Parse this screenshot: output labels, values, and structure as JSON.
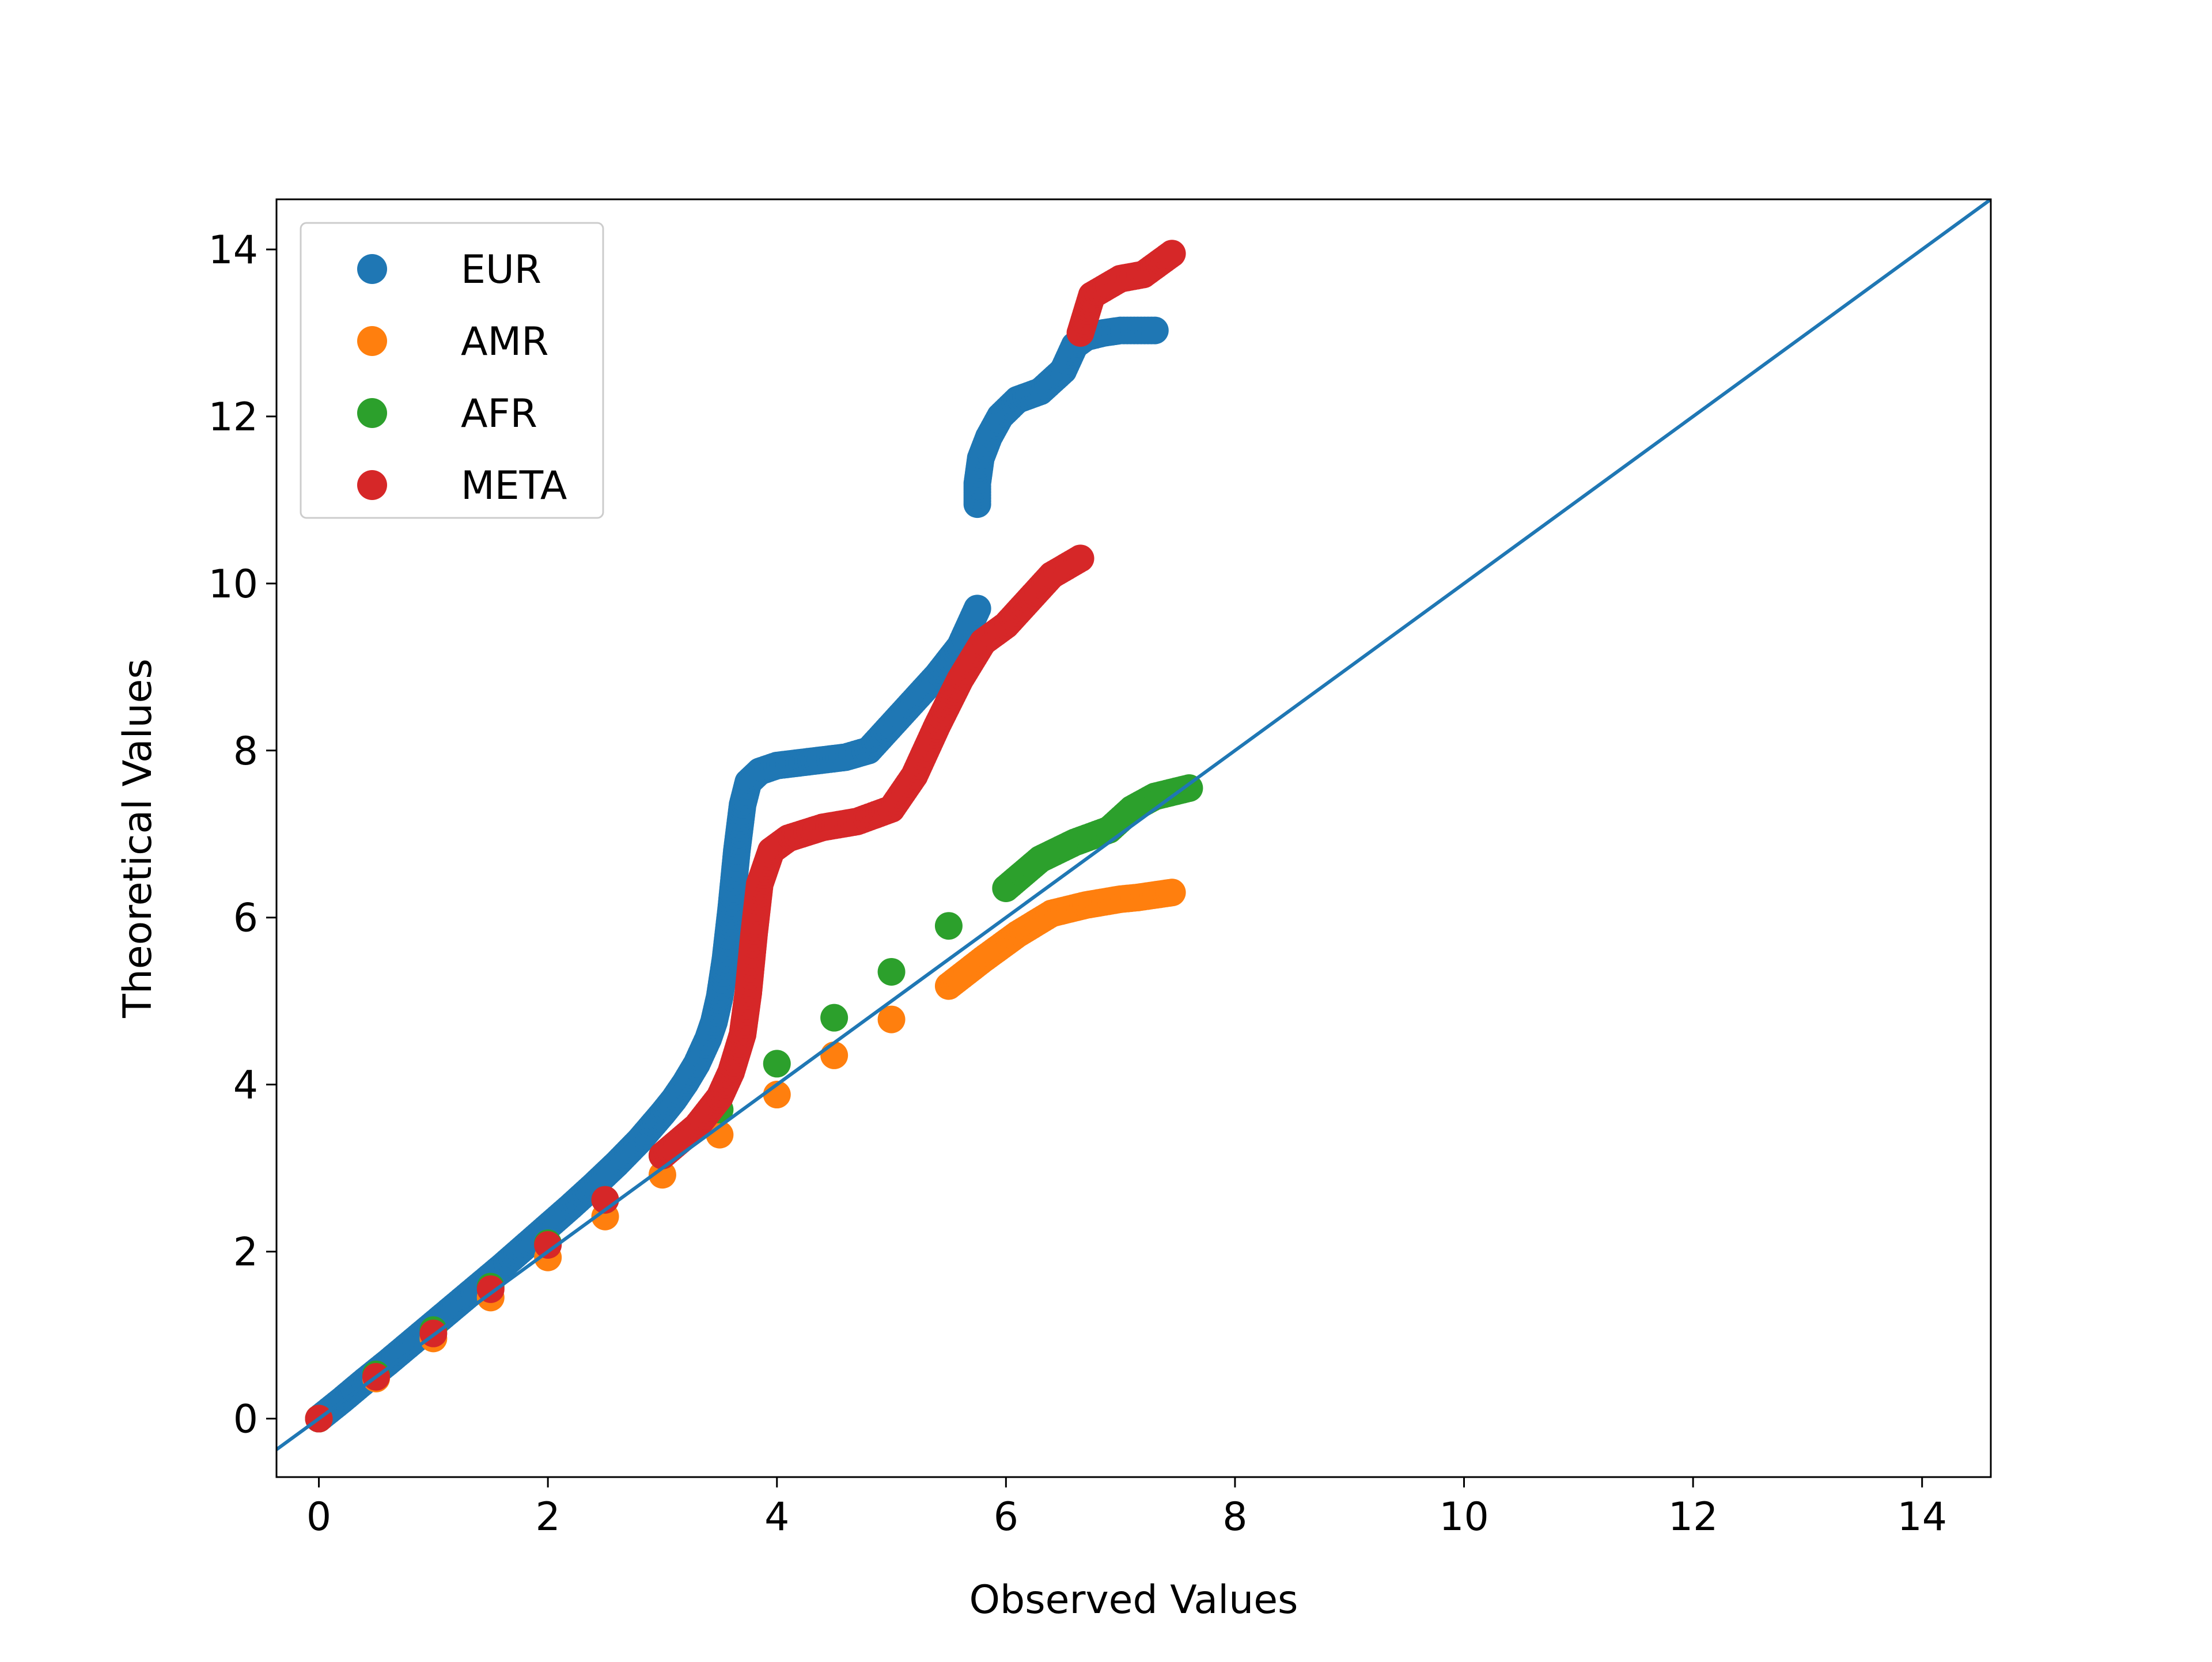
{
  "chart_data": {
    "type": "scatter",
    "title": "",
    "xlabel": "Observed Values",
    "ylabel": "Theoretical Values",
    "xlim": [
      -0.37,
      14.6
    ],
    "ylim": [
      -0.7,
      14.6
    ],
    "xticks": [
      0,
      2,
      4,
      6,
      8,
      10,
      12,
      14
    ],
    "yticks": [
      0,
      2,
      4,
      6,
      8,
      10,
      12,
      14
    ],
    "grid": false,
    "legend_position": "top-left",
    "reference_line": {
      "type": "identity",
      "color": "#1f77b4"
    },
    "series": [
      {
        "name": "EUR",
        "color": "#1f77b4",
        "points": [
          [
            0,
            0
          ],
          [
            0.2,
            0.22
          ],
          [
            0.4,
            0.45
          ],
          [
            0.6,
            0.67
          ],
          [
            0.8,
            0.9
          ],
          [
            1.0,
            1.13
          ],
          [
            1.2,
            1.36
          ],
          [
            1.4,
            1.59
          ],
          [
            1.6,
            1.82
          ],
          [
            1.8,
            2.06
          ],
          [
            2.0,
            2.3
          ],
          [
            2.2,
            2.54
          ],
          [
            2.4,
            2.79
          ],
          [
            2.6,
            3.05
          ],
          [
            2.8,
            3.33
          ],
          [
            3.0,
            3.65
          ],
          [
            3.1,
            3.82
          ],
          [
            3.2,
            4.02
          ],
          [
            3.3,
            4.25
          ],
          [
            3.4,
            4.55
          ],
          [
            3.45,
            4.75
          ],
          [
            3.5,
            5.05
          ],
          [
            3.55,
            5.5
          ],
          [
            3.6,
            6.1
          ],
          [
            3.65,
            6.8
          ],
          [
            3.7,
            7.35
          ],
          [
            3.75,
            7.62
          ],
          [
            3.85,
            7.75
          ],
          [
            4.0,
            7.82
          ],
          [
            4.3,
            7.87
          ],
          [
            4.6,
            7.92
          ],
          [
            4.8,
            8.0
          ],
          [
            5.0,
            8.3
          ],
          [
            5.2,
            8.6
          ],
          [
            5.4,
            8.9
          ],
          [
            5.6,
            9.25
          ],
          [
            5.75,
            9.7
          ],
          [
            5.75,
            10.95
          ],
          [
            5.75,
            11.2
          ],
          [
            5.78,
            11.5
          ],
          [
            5.85,
            11.75
          ],
          [
            5.95,
            12.0
          ],
          [
            6.1,
            12.2
          ],
          [
            6.3,
            12.3
          ],
          [
            6.5,
            12.55
          ],
          [
            6.6,
            12.85
          ],
          [
            6.7,
            12.95
          ],
          [
            6.85,
            13.0
          ],
          [
            7.0,
            13.03
          ],
          [
            7.3,
            13.03
          ]
        ]
      },
      {
        "name": "AMR",
        "color": "#ff7f0e",
        "points": [
          [
            0,
            0
          ],
          [
            0.5,
            0.48
          ],
          [
            1.0,
            0.96
          ],
          [
            1.5,
            1.45
          ],
          [
            2.0,
            1.93
          ],
          [
            2.5,
            2.42
          ],
          [
            3.0,
            2.92
          ],
          [
            3.5,
            3.4
          ],
          [
            4.0,
            3.88
          ],
          [
            4.5,
            4.35
          ],
          [
            5.0,
            4.78
          ],
          [
            5.5,
            5.18
          ],
          [
            5.8,
            5.5
          ],
          [
            6.1,
            5.8
          ],
          [
            6.4,
            6.05
          ],
          [
            6.7,
            6.15
          ],
          [
            7.0,
            6.22
          ],
          [
            7.15,
            6.24
          ],
          [
            7.45,
            6.3
          ]
        ]
      },
      {
        "name": "AFR",
        "color": "#2ca02c",
        "points": [
          [
            0,
            0
          ],
          [
            0.5,
            0.53
          ],
          [
            1.0,
            1.06
          ],
          [
            1.5,
            1.58
          ],
          [
            2.0,
            2.1
          ],
          [
            2.5,
            2.62
          ],
          [
            3.0,
            3.15
          ],
          [
            3.5,
            3.7
          ],
          [
            4.0,
            4.25
          ],
          [
            4.5,
            4.8
          ],
          [
            5.0,
            5.35
          ],
          [
            5.5,
            5.9
          ],
          [
            6.0,
            6.35
          ],
          [
            6.3,
            6.7
          ],
          [
            6.6,
            6.9
          ],
          [
            6.9,
            7.05
          ],
          [
            7.1,
            7.3
          ],
          [
            7.3,
            7.45
          ],
          [
            7.6,
            7.55
          ]
        ]
      },
      {
        "name": "META",
        "color": "#d62728",
        "points": [
          [
            0,
            0
          ],
          [
            0.5,
            0.5
          ],
          [
            1.0,
            1.02
          ],
          [
            1.5,
            1.55
          ],
          [
            2.0,
            2.08
          ],
          [
            2.5,
            2.62
          ],
          [
            3.0,
            3.15
          ],
          [
            3.3,
            3.5
          ],
          [
            3.5,
            3.85
          ],
          [
            3.6,
            4.15
          ],
          [
            3.7,
            4.6
          ],
          [
            3.75,
            5.1
          ],
          [
            3.8,
            5.8
          ],
          [
            3.85,
            6.4
          ],
          [
            3.95,
            6.8
          ],
          [
            4.1,
            6.95
          ],
          [
            4.4,
            7.08
          ],
          [
            4.7,
            7.15
          ],
          [
            5.0,
            7.3
          ],
          [
            5.2,
            7.7
          ],
          [
            5.4,
            8.3
          ],
          [
            5.6,
            8.85
          ],
          [
            5.8,
            9.3
          ],
          [
            6.0,
            9.5
          ],
          [
            6.2,
            9.8
          ],
          [
            6.4,
            10.1
          ],
          [
            6.65,
            10.3
          ],
          [
            6.65,
            13.0
          ],
          [
            6.75,
            13.45
          ],
          [
            7.0,
            13.65
          ],
          [
            7.2,
            13.7
          ],
          [
            7.45,
            13.95
          ]
        ]
      }
    ]
  }
}
